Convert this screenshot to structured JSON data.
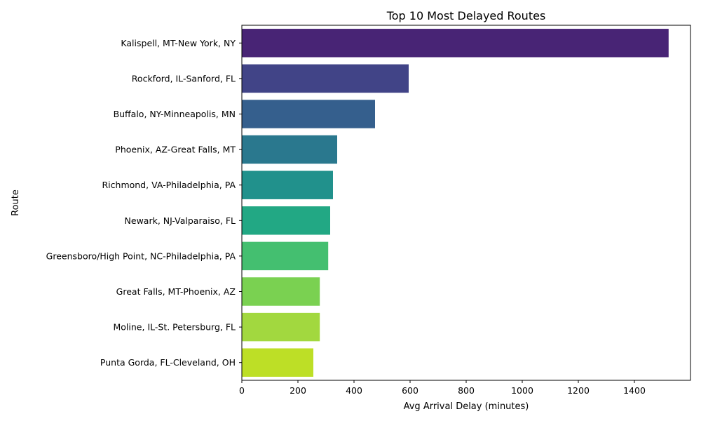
{
  "chart_data": {
    "type": "bar",
    "orientation": "horizontal",
    "title": "Top 10 Most Delayed Routes",
    "xlabel": "Avg Arrival Delay (minutes)",
    "ylabel": "Route",
    "xlim": [
      0,
      1600
    ],
    "xticks": [
      0,
      200,
      400,
      600,
      800,
      1000,
      1200,
      1400
    ],
    "grid": false,
    "legend": "none",
    "categories": [
      "Kalispell, MT-New York, NY",
      "Rockford, IL-Sanford, FL",
      "Buffalo, NY-Minneapolis, MN",
      "Phoenix, AZ-Great Falls, MT",
      "Richmond, VA-Philadelphia, PA",
      "Newark, NJ-Valparaiso, FL",
      "Greensboro/High Point, NC-Philadelphia, PA",
      "Great Falls, MT-Phoenix, AZ",
      "Moline, IL-St. Petersburg, FL",
      "Punta Gorda, FL-Cleveland, OH"
    ],
    "values": [
      1522,
      595,
      475,
      340,
      325,
      315,
      308,
      278,
      278,
      255
    ],
    "colors": [
      "#482475",
      "#414487",
      "#355f8d",
      "#2a788e",
      "#21918c",
      "#22a884",
      "#44bf70",
      "#7ad151",
      "#a2d83f",
      "#bddf26"
    ]
  }
}
